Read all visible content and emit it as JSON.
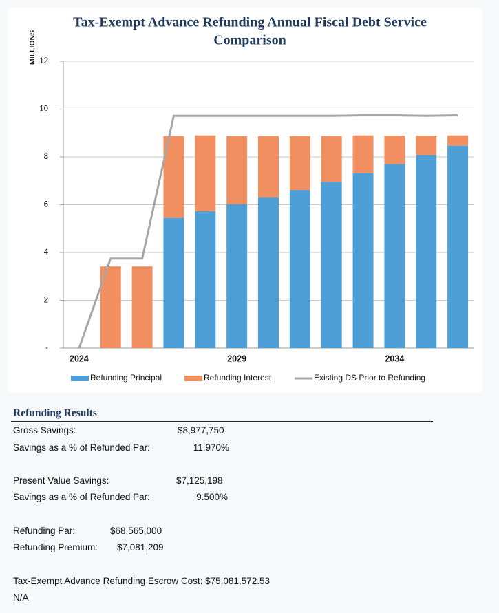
{
  "chart_data": {
    "type": "bar",
    "title": "Tax-Exempt Advance Refunding Annual Fiscal Debt Service Comparison",
    "y_label": "MILLIONS",
    "categories": [
      "2024",
      null,
      null,
      null,
      null,
      "2029",
      null,
      null,
      null,
      null,
      "2034",
      null,
      null
    ],
    "series": [
      {
        "name": "Refunding Principal",
        "color": "#4e9fd8",
        "kind": "bar",
        "values": [
          0,
          0,
          0,
          5.45,
          5.73,
          6.02,
          6.3,
          6.62,
          6.96,
          7.32,
          7.7,
          8.07,
          8.47
        ]
      },
      {
        "name": "Refunding Interest",
        "color": "#f28f60",
        "kind": "bar",
        "values": [
          0,
          3.42,
          3.42,
          3.42,
          3.17,
          2.85,
          2.57,
          2.25,
          1.91,
          1.58,
          1.19,
          0.82,
          0.43
        ]
      },
      {
        "name": "Existing DS Prior to Refunding",
        "color": "#a6a6a6",
        "kind": "line",
        "values": [
          0,
          3.75,
          3.75,
          9.72,
          9.72,
          9.72,
          9.72,
          9.72,
          9.72,
          9.74,
          9.74,
          9.72,
          9.74
        ]
      }
    ],
    "ylim": [
      0,
      12
    ],
    "yticks": [
      {
        "value": 0,
        "label": "-"
      },
      2,
      4,
      6,
      8,
      10,
      12
    ],
    "grid": true
  },
  "results": {
    "title": "Refunding Results",
    "gross_savings": [
      "Gross Savings:",
      "$8,977,750"
    ],
    "gross_pct": [
      "Savings as a % of Refunded Par:",
      "11.970%"
    ],
    "pv_savings": [
      "Present Value Savings:",
      "$7,125,198"
    ],
    "pv_pct": [
      "Savings as a % of Refunded Par:",
      "9.500%"
    ],
    "par": [
      "Refunding Par:",
      "$68,565,000"
    ],
    "premium": [
      "Refunding Premium:",
      "$7,081,209"
    ],
    "escrow": "Tax-Exempt Advance Refunding Escrow Cost: $75,081,572.53",
    "note": "N/A"
  }
}
